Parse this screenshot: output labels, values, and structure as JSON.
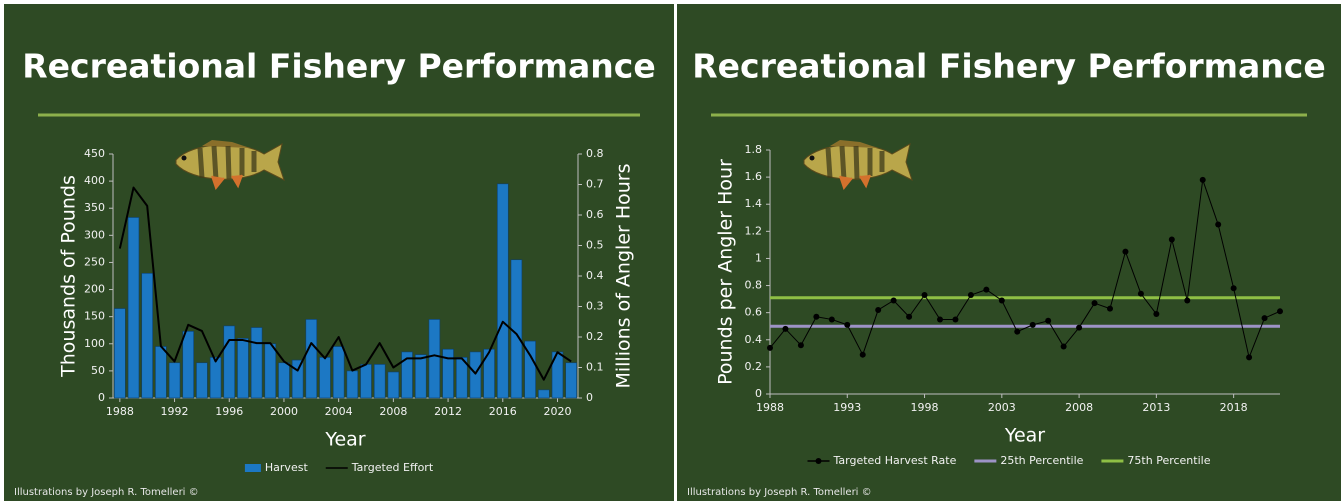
{
  "chart_data": [
    {
      "type": "bar",
      "title": "Recreational Fishery Performance",
      "credit": "Illustrations by Joseph R. Tomelleri ©",
      "xlabel": "Year",
      "ylabel": "Thousands of Pounds",
      "y2label": "Millions of Angler Hours",
      "x": [
        1988,
        1989,
        1990,
        1991,
        1992,
        1993,
        1994,
        1995,
        1996,
        1997,
        1998,
        1999,
        2000,
        2001,
        2002,
        2003,
        2004,
        2005,
        2006,
        2007,
        2008,
        2009,
        2010,
        2011,
        2012,
        2013,
        2014,
        2015,
        2016,
        2017,
        2018,
        2019,
        2020,
        2021
      ],
      "xlim": [
        1987.5,
        2021.5
      ],
      "xticks": [
        1988,
        1992,
        1996,
        2000,
        2004,
        2008,
        2012,
        2016,
        2020
      ],
      "ylim": [
        0,
        450
      ],
      "yticks": [
        0,
        50,
        100,
        150,
        200,
        250,
        300,
        350,
        400,
        450
      ],
      "y2lim": [
        0,
        0.8
      ],
      "y2ticks": [
        0,
        0.1,
        0.2,
        0.3,
        0.4,
        0.5,
        0.6,
        0.7,
        0.8
      ],
      "series": [
        {
          "name": "Harvest",
          "type": "bar",
          "color": "#1c78c4",
          "values": [
            165,
            333,
            230,
            95,
            65,
            123,
            65,
            75,
            133,
            110,
            130,
            100,
            65,
            70,
            145,
            75,
            95,
            50,
            62,
            62,
            48,
            85,
            80,
            145,
            90,
            75,
            85,
            90,
            395,
            255,
            105,
            15,
            85,
            65
          ]
        },
        {
          "name": "Targeted Effort",
          "type": "line",
          "axis": "y2",
          "color": "#000000",
          "values": [
            0.49,
            0.69,
            0.63,
            0.17,
            0.12,
            0.24,
            0.22,
            0.12,
            0.19,
            0.19,
            0.18,
            0.18,
            0.12,
            0.09,
            0.18,
            0.13,
            0.2,
            0.09,
            0.11,
            0.18,
            0.1,
            0.13,
            0.13,
            0.14,
            0.13,
            0.13,
            0.08,
            0.15,
            0.25,
            0.21,
            0.14,
            0.06,
            0.15,
            0.12
          ]
        }
      ]
    },
    {
      "type": "line",
      "title": "Recreational Fishery Performance",
      "credit": "Illustrations by Joseph R. Tomelleri ©",
      "xlabel": "Year",
      "ylabel": "Pounds per Angler Hour",
      "x": [
        1988,
        1989,
        1990,
        1991,
        1992,
        1993,
        1994,
        1995,
        1996,
        1997,
        1998,
        1999,
        2000,
        2001,
        2002,
        2003,
        2004,
        2005,
        2006,
        2007,
        2008,
        2009,
        2010,
        2011,
        2012,
        2013,
        2014,
        2015,
        2016,
        2017,
        2018,
        2019,
        2020,
        2021
      ],
      "xlim": [
        1988,
        2021
      ],
      "xticks": [
        1988,
        1993,
        1998,
        2003,
        2008,
        2013,
        2018
      ],
      "ylim": [
        0,
        1.8
      ],
      "yticks": [
        0,
        0.2,
        0.4,
        0.6,
        0.8,
        1,
        1.2,
        1.4,
        1.6,
        1.8
      ],
      "series": [
        {
          "name": "Targeted Harvest Rate",
          "type": "line",
          "markers": true,
          "color": "#000000",
          "values": [
            0.34,
            0.48,
            0.36,
            0.57,
            0.55,
            0.51,
            0.29,
            0.62,
            0.69,
            0.57,
            0.73,
            0.55,
            0.55,
            0.73,
            0.77,
            0.69,
            0.46,
            0.51,
            0.54,
            0.35,
            0.49,
            0.67,
            0.63,
            1.05,
            0.74,
            0.59,
            1.14,
            0.69,
            1.58,
            1.25,
            0.78,
            0.27,
            0.56,
            0.61
          ]
        }
      ],
      "hlines": [
        {
          "name": "25th Percentile",
          "color": "#9d93c6",
          "value": 0.5
        },
        {
          "name": "75th Percentile",
          "color": "#8fbf45",
          "value": 0.71
        }
      ]
    }
  ]
}
